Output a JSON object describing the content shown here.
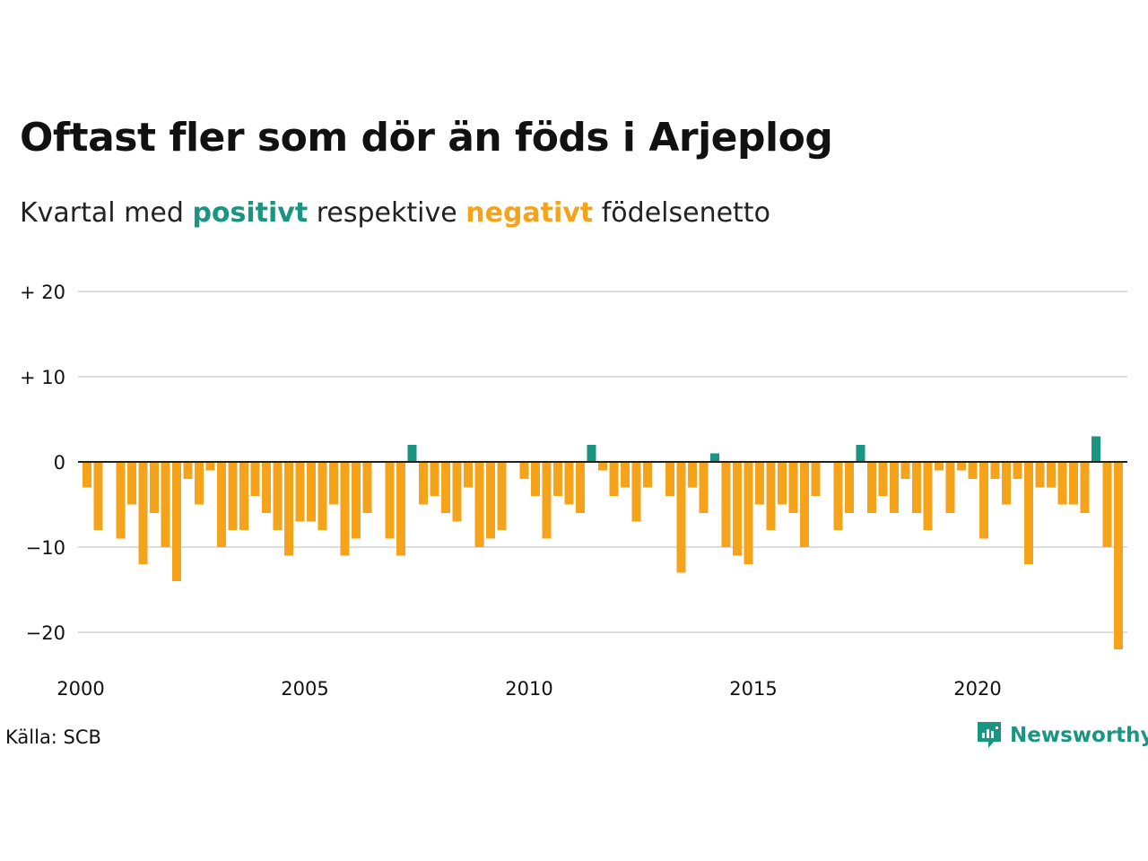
{
  "title": "Oftast fler som dör än föds i Arjeplog",
  "subtitle": {
    "prefix": "Kvartal med",
    "positive_word": "positivt",
    "middle": "respektive",
    "negative_word": "negativt",
    "suffix": "födelsenetto"
  },
  "colors": {
    "positive": "#1a9582",
    "negative": "#f5a31a",
    "grid": "#dddddd",
    "zero_line": "#222222"
  },
  "source": "Källa: SCB",
  "logo": {
    "text": "Newsworthy",
    "icon": "newsworthy-logo-icon"
  },
  "chart_data": {
    "type": "bar",
    "x_start": "2000-Q1",
    "x_step": "quarter",
    "ylim": [
      -24,
      22
    ],
    "yticks": [
      {
        "value": 20,
        "label": "+ 20"
      },
      {
        "value": 10,
        "label": "+ 10"
      },
      {
        "value": 0,
        "label": "0"
      },
      {
        "value": -10,
        "label": "−10"
      },
      {
        "value": -20,
        "label": "−20"
      }
    ],
    "xticks": [
      {
        "year": 2000,
        "label": "2000"
      },
      {
        "year": 2005,
        "label": "2005"
      },
      {
        "year": 2010,
        "label": "2010"
      },
      {
        "year": 2015,
        "label": "2015"
      },
      {
        "year": 2020,
        "label": "2020"
      }
    ],
    "values": [
      -3,
      -8,
      0,
      -9,
      -5,
      -12,
      -6,
      -10,
      -14,
      -2,
      -5,
      -1,
      -10,
      -8,
      -8,
      -4,
      -6,
      -8,
      -11,
      -7,
      -7,
      -8,
      -5,
      -11,
      -9,
      -6,
      0,
      -9,
      -11,
      2,
      -5,
      -4,
      -6,
      -7,
      -3,
      -10,
      -9,
      -8,
      0,
      -2,
      -4,
      -9,
      -4,
      -5,
      -6,
      2,
      -1,
      -4,
      -3,
      -7,
      -3,
      0,
      -4,
      -13,
      -3,
      -6,
      1,
      -10,
      -11,
      -12,
      -5,
      -8,
      -5,
      -6,
      -10,
      -4,
      0,
      -8,
      -6,
      2,
      -6,
      -4,
      -6,
      -2,
      -6,
      -8,
      -1,
      -6,
      -1,
      -2,
      -9,
      -2,
      -5,
      -2,
      -12,
      -3,
      -3,
      -5,
      -5,
      -6,
      3,
      -10,
      -22
    ]
  }
}
